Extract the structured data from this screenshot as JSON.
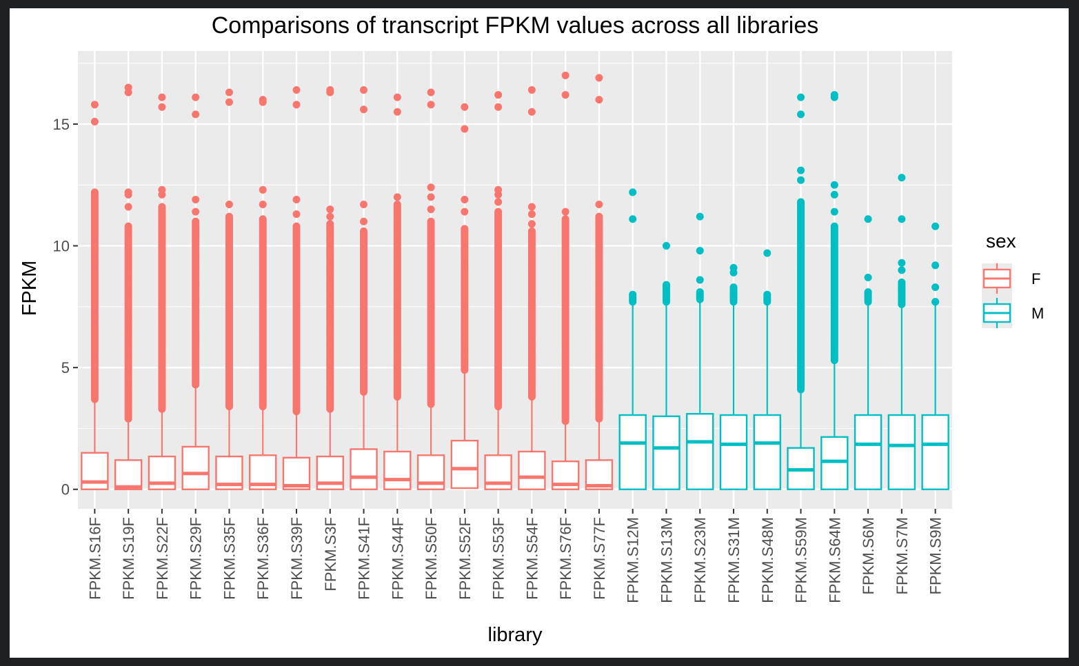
{
  "chart_data": {
    "type": "boxplot",
    "title": "Comparisons of transcript FPKM values across all libraries",
    "xlabel": "library",
    "ylabel": "FPKM",
    "ylim": [
      -0.8,
      18.0
    ],
    "yticks": [
      0,
      5,
      10,
      15
    ],
    "grid": true,
    "legend": {
      "title": "sex",
      "placement": "right",
      "entries": [
        "F",
        "M"
      ]
    },
    "colors": {
      "F": "#f8766d",
      "M": "#00bfc4",
      "panel": "#ebebeb",
      "grid": "#ffffff"
    },
    "categories": [
      "FPKM.S16F",
      "FPKM.S19F",
      "FPKM.S22F",
      "FPKM.S29F",
      "FPKM.S35F",
      "FPKM.S36F",
      "FPKM.S39F",
      "FPKM.S3F",
      "FPKM.S41F",
      "FPKM.S44F",
      "FPKM.S50F",
      "FPKM.S52F",
      "FPKM.S53F",
      "FPKM.S54F",
      "FPKM.S76F",
      "FPKM.S77F",
      "FPKM.S12M",
      "FPKM.S13M",
      "FPKM.S23M",
      "FPKM.S31M",
      "FPKM.S48M",
      "FPKM.S59M",
      "FPKM.S64M",
      "FPKM.S6M",
      "FPKM.S7M",
      "FPKM.S9M"
    ],
    "boxes": [
      {
        "library": "FPKM.S16F",
        "sex": "F",
        "q1": 0,
        "median": 0.3,
        "q3": 1.5,
        "whisker_low": 0,
        "whisker_high": 3.7,
        "outlier_range": [
          3.7,
          12.2
        ],
        "outliers": [
          15.1,
          15.8
        ]
      },
      {
        "library": "FPKM.S19F",
        "sex": "F",
        "q1": 0,
        "median": 0.1,
        "q3": 1.2,
        "whisker_low": 0,
        "whisker_high": 2.9,
        "outlier_range": [
          2.9,
          10.8
        ],
        "outliers": [
          11.6,
          12.1,
          12.2,
          16.3,
          16.5
        ]
      },
      {
        "library": "FPKM.S22F",
        "sex": "F",
        "q1": 0,
        "median": 0.25,
        "q3": 1.35,
        "whisker_low": 0,
        "whisker_high": 3.3,
        "outlier_range": [
          3.3,
          11.6
        ],
        "outliers": [
          12.1,
          12.3,
          15.7,
          16.1
        ]
      },
      {
        "library": "FPKM.S29F",
        "sex": "F",
        "q1": 0,
        "median": 0.65,
        "q3": 1.75,
        "whisker_low": 0,
        "whisker_high": 4.3,
        "outlier_range": [
          4.3,
          11.0
        ],
        "outliers": [
          11.4,
          11.9,
          15.4,
          16.1
        ]
      },
      {
        "library": "FPKM.S35F",
        "sex": "F",
        "q1": 0,
        "median": 0.2,
        "q3": 1.35,
        "whisker_low": 0,
        "whisker_high": 3.4,
        "outlier_range": [
          3.4,
          11.2
        ],
        "outliers": [
          11.7,
          15.9,
          16.3
        ]
      },
      {
        "library": "FPKM.S36F",
        "sex": "F",
        "q1": 0,
        "median": 0.2,
        "q3": 1.4,
        "whisker_low": 0,
        "whisker_high": 3.4,
        "outlier_range": [
          3.4,
          11.1
        ],
        "outliers": [
          11.7,
          12.3,
          15.9,
          16.0
        ]
      },
      {
        "library": "FPKM.S39F",
        "sex": "F",
        "q1": 0,
        "median": 0.15,
        "q3": 1.3,
        "whisker_low": 0,
        "whisker_high": 3.2,
        "outlier_range": [
          3.2,
          10.8
        ],
        "outliers": [
          11.3,
          11.9,
          15.8,
          16.4
        ]
      },
      {
        "library": "FPKM.S3F",
        "sex": "F",
        "q1": 0,
        "median": 0.25,
        "q3": 1.35,
        "whisker_low": 0,
        "whisker_high": 3.3,
        "outlier_range": [
          3.3,
          10.9
        ],
        "outliers": [
          11.2,
          11.5,
          16.3,
          16.4
        ]
      },
      {
        "library": "FPKM.S41F",
        "sex": "F",
        "q1": 0,
        "median": 0.5,
        "q3": 1.65,
        "whisker_low": 0,
        "whisker_high": 4.0,
        "outlier_range": [
          4.0,
          10.6
        ],
        "outliers": [
          11.0,
          11.7,
          15.6,
          16.4
        ]
      },
      {
        "library": "FPKM.S44F",
        "sex": "F",
        "q1": 0,
        "median": 0.4,
        "q3": 1.55,
        "whisker_low": 0,
        "whisker_high": 3.8,
        "outlier_range": [
          3.8,
          11.7
        ],
        "outliers": [
          12.0,
          15.5,
          16.1
        ]
      },
      {
        "library": "FPKM.S50F",
        "sex": "F",
        "q1": 0,
        "median": 0.25,
        "q3": 1.4,
        "whisker_low": 0,
        "whisker_high": 3.5,
        "outlier_range": [
          3.5,
          11.0
        ],
        "outliers": [
          11.5,
          12.0,
          12.4,
          15.8,
          16.3
        ]
      },
      {
        "library": "FPKM.S52F",
        "sex": "F",
        "q1": 0.05,
        "median": 0.85,
        "q3": 2.0,
        "whisker_low": 0.05,
        "whisker_high": 4.9,
        "outlier_range": [
          4.9,
          10.7
        ],
        "outliers": [
          11.4,
          11.9,
          14.8,
          15.7
        ]
      },
      {
        "library": "FPKM.S53F",
        "sex": "F",
        "q1": 0,
        "median": 0.25,
        "q3": 1.4,
        "whisker_low": 0,
        "whisker_high": 3.4,
        "outlier_range": [
          3.4,
          11.4
        ],
        "outliers": [
          11.8,
          12.1,
          12.3,
          15.7,
          16.2
        ]
      },
      {
        "library": "FPKM.S54F",
        "sex": "F",
        "q1": 0,
        "median": 0.5,
        "q3": 1.55,
        "whisker_low": 0,
        "whisker_high": 3.8,
        "outlier_range": [
          3.8,
          10.6
        ],
        "outliers": [
          10.9,
          11.3,
          11.6,
          15.5,
          16.4
        ]
      },
      {
        "library": "FPKM.S76F",
        "sex": "F",
        "q1": 0,
        "median": 0.2,
        "q3": 1.15,
        "whisker_low": 0,
        "whisker_high": 2.8,
        "outlier_range": [
          2.8,
          11.1
        ],
        "outliers": [
          11.4,
          16.2,
          17.0
        ]
      },
      {
        "library": "FPKM.S77F",
        "sex": "F",
        "q1": 0,
        "median": 0.15,
        "q3": 1.2,
        "whisker_low": 0,
        "whisker_high": 2.9,
        "outlier_range": [
          2.9,
          11.2
        ],
        "outliers": [
          11.7,
          16.0,
          16.9
        ]
      },
      {
        "library": "FPKM.S12M",
        "sex": "M",
        "q1": 0,
        "median": 1.9,
        "q3": 3.05,
        "whisker_low": 0,
        "whisker_high": 7.6,
        "outlier_range": [
          7.7,
          8.0
        ],
        "outliers": [
          11.1,
          12.2
        ]
      },
      {
        "library": "FPKM.S13M",
        "sex": "M",
        "q1": 0,
        "median": 1.7,
        "q3": 3.0,
        "whisker_low": 0,
        "whisker_high": 7.6,
        "outlier_range": [
          7.7,
          8.4
        ],
        "outliers": [
          10.0
        ]
      },
      {
        "library": "FPKM.S23M",
        "sex": "M",
        "q1": 0,
        "median": 1.95,
        "q3": 3.1,
        "whisker_low": 0,
        "whisker_high": 7.7,
        "outlier_range": [
          7.8,
          8.1
        ],
        "outliers": [
          8.6,
          9.8,
          11.2
        ]
      },
      {
        "library": "FPKM.S31M",
        "sex": "M",
        "q1": 0,
        "median": 1.85,
        "q3": 3.05,
        "whisker_low": 0,
        "whisker_high": 7.6,
        "outlier_range": [
          7.7,
          8.3
        ],
        "outliers": [
          8.9,
          9.1
        ]
      },
      {
        "library": "FPKM.S48M",
        "sex": "M",
        "q1": 0,
        "median": 1.9,
        "q3": 3.05,
        "whisker_low": 0,
        "whisker_high": 7.6,
        "outlier_range": [
          7.7,
          8.0
        ],
        "outliers": [
          9.7
        ]
      },
      {
        "library": "FPKM.S59M",
        "sex": "M",
        "q1": 0,
        "median": 0.8,
        "q3": 1.7,
        "whisker_low": 0,
        "whisker_high": 4.1,
        "outlier_range": [
          4.1,
          11.8
        ],
        "outliers": [
          12.7,
          13.1,
          15.4,
          16.1
        ]
      },
      {
        "library": "FPKM.S64M",
        "sex": "M",
        "q1": 0,
        "median": 1.15,
        "q3": 2.15,
        "whisker_low": 0,
        "whisker_high": 5.3,
        "outlier_range": [
          5.3,
          10.8
        ],
        "outliers": [
          11.4,
          12.1,
          12.5,
          16.1,
          16.2
        ]
      },
      {
        "library": "FPKM.S6M",
        "sex": "M",
        "q1": 0,
        "median": 1.85,
        "q3": 3.05,
        "whisker_low": 0,
        "whisker_high": 7.6,
        "outlier_range": [
          7.7,
          8.1
        ],
        "outliers": [
          8.7,
          11.1
        ]
      },
      {
        "library": "FPKM.S7M",
        "sex": "M",
        "q1": 0,
        "median": 1.8,
        "q3": 3.05,
        "whisker_low": 0,
        "whisker_high": 7.5,
        "outlier_range": [
          7.6,
          8.5
        ],
        "outliers": [
          9.0,
          9.3,
          11.1,
          12.8
        ]
      },
      {
        "library": "FPKM.S9M",
        "sex": "M",
        "q1": 0,
        "median": 1.85,
        "q3": 3.05,
        "whisker_low": 0,
        "whisker_high": 7.6,
        "outlier_range": [
          7.7,
          7.7
        ],
        "outliers": [
          8.3,
          9.2,
          10.8
        ]
      }
    ]
  }
}
